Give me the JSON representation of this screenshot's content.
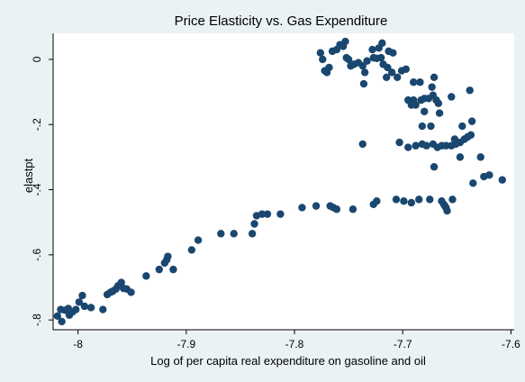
{
  "colors": {
    "background": "#eaf2f3",
    "plot_background": "#ffffff",
    "marker": "#1a476f",
    "axis": "#000000"
  },
  "chart_data": {
    "type": "scatter",
    "title": "Price Elasticity vs. Gas Expenditure",
    "xlabel": "Log of per capita real expenditure on gasoline and oil",
    "ylabel": "elastpt",
    "xlim": [
      -8.023,
      -7.597
    ],
    "ylim": [
      -0.83,
      0.08
    ],
    "grid": false,
    "x_ticks": [
      -8,
      -7.9,
      -7.8,
      -7.7,
      -7.6
    ],
    "x_tick_labels": [
      "-8",
      "-7.9",
      "-7.8",
      "-7.7",
      "-7.6"
    ],
    "y_ticks": [
      0,
      -0.2,
      -0.4,
      -0.6,
      -0.8
    ],
    "y_tick_labels": [
      "0",
      "-.2",
      "-.4",
      "-.6",
      "-.8"
    ],
    "series": [
      {
        "points": [
          [
            -8.019,
            -0.788
          ],
          [
            -8.016,
            -0.768
          ],
          [
            -8.015,
            -0.805
          ],
          [
            -8.012,
            -0.77
          ],
          [
            -8.009,
            -0.765
          ],
          [
            -8.008,
            -0.785
          ],
          [
            -8.005,
            -0.775
          ],
          [
            -8.002,
            -0.768
          ],
          [
            -7.999,
            -0.745
          ],
          [
            -7.996,
            -0.725
          ],
          [
            -7.994,
            -0.758
          ],
          [
            -7.988,
            -0.762
          ],
          [
            -7.977,
            -0.768
          ],
          [
            -7.973,
            -0.722
          ],
          [
            -7.97,
            -0.715
          ],
          [
            -7.968,
            -0.712
          ],
          [
            -7.965,
            -0.705
          ],
          [
            -7.963,
            -0.695
          ],
          [
            -7.96,
            -0.685
          ],
          [
            -7.958,
            -0.703
          ],
          [
            -7.955,
            -0.705
          ],
          [
            -7.951,
            -0.715
          ],
          [
            -7.937,
            -0.665
          ],
          [
            -7.925,
            -0.645
          ],
          [
            -7.92,
            -0.625
          ],
          [
            -7.918,
            -0.615
          ],
          [
            -7.917,
            -0.605
          ],
          [
            -7.912,
            -0.645
          ],
          [
            -7.895,
            -0.585
          ],
          [
            -7.889,
            -0.555
          ],
          [
            -7.868,
            -0.535
          ],
          [
            -7.856,
            -0.535
          ],
          [
            -7.839,
            -0.535
          ],
          [
            -7.837,
            -0.505
          ],
          [
            -7.835,
            -0.48
          ],
          [
            -7.83,
            -0.475
          ],
          [
            -7.825,
            -0.475
          ],
          [
            -7.813,
            -0.475
          ],
          [
            -7.793,
            -0.455
          ],
          [
            -7.78,
            -0.45
          ],
          [
            -7.767,
            -0.45
          ],
          [
            -7.764,
            -0.455
          ],
          [
            -7.761,
            -0.46
          ],
          [
            -7.746,
            -0.46
          ],
          [
            -7.727,
            -0.445
          ],
          [
            -7.724,
            -0.435
          ],
          [
            -7.706,
            -0.43
          ],
          [
            -7.699,
            -0.435
          ],
          [
            -7.692,
            -0.44
          ],
          [
            -7.685,
            -0.43
          ],
          [
            -7.675,
            -0.43
          ],
          [
            -7.664,
            -0.435
          ],
          [
            -7.662,
            -0.445
          ],
          [
            -7.661,
            -0.45
          ],
          [
            -7.66,
            -0.455
          ],
          [
            -7.659,
            -0.465
          ],
          [
            -7.654,
            -0.43
          ],
          [
            -7.737,
            -0.26
          ],
          [
            -7.703,
            -0.255
          ],
          [
            -7.695,
            -0.27
          ],
          [
            -7.688,
            -0.265
          ],
          [
            -7.682,
            -0.26
          ],
          [
            -7.678,
            -0.265
          ],
          [
            -7.672,
            -0.26
          ],
          [
            -7.668,
            -0.27
          ],
          [
            -7.664,
            -0.265
          ],
          [
            -7.66,
            -0.265
          ],
          [
            -7.655,
            -0.265
          ],
          [
            -7.651,
            -0.26
          ],
          [
            -7.647,
            -0.255
          ],
          [
            -7.643,
            -0.245
          ],
          [
            -7.64,
            -0.238
          ],
          [
            -7.637,
            -0.232
          ],
          [
            -7.671,
            -0.33
          ],
          [
            -7.647,
            -0.3
          ],
          [
            -7.628,
            -0.3
          ],
          [
            -7.635,
            -0.38
          ],
          [
            -7.625,
            -0.36
          ],
          [
            -7.62,
            -0.355
          ],
          [
            -7.608,
            -0.37
          ],
          [
            -7.652,
            -0.245
          ],
          [
            -7.645,
            -0.205
          ],
          [
            -7.636,
            -0.19
          ],
          [
            -7.638,
            -0.095
          ],
          [
            -7.655,
            -0.115
          ],
          [
            -7.666,
            -0.165
          ],
          [
            -7.674,
            -0.205
          ],
          [
            -7.682,
            -0.205
          ],
          [
            -7.69,
            -0.125
          ],
          [
            -7.688,
            -0.14
          ],
          [
            -7.683,
            -0.125
          ],
          [
            -7.68,
            -0.12
          ],
          [
            -7.676,
            -0.12
          ],
          [
            -7.672,
            -0.11
          ],
          [
            -7.669,
            -0.125
          ],
          [
            -7.667,
            -0.135
          ],
          [
            -7.673,
            -0.085
          ],
          [
            -7.671,
            -0.055
          ],
          [
            -7.684,
            -0.07
          ],
          [
            -7.69,
            -0.07
          ],
          [
            -7.697,
            -0.03
          ],
          [
            -7.701,
            -0.035
          ],
          [
            -7.705,
            -0.055
          ],
          [
            -7.71,
            -0.04
          ],
          [
            -7.714,
            -0.025
          ],
          [
            -7.718,
            -0.015
          ],
          [
            -7.72,
            0.005
          ],
          [
            -7.724,
            0.003
          ],
          [
            -7.727,
            0.005
          ],
          [
            -7.722,
            0.035
          ],
          [
            -7.719,
            0.05
          ],
          [
            -7.713,
            0.025
          ],
          [
            -7.709,
            0.02
          ],
          [
            -7.728,
            0.03
          ],
          [
            -7.733,
            -0.005
          ],
          [
            -7.737,
            -0.02
          ],
          [
            -7.741,
            -0.01
          ],
          [
            -7.745,
            -0.015
          ],
          [
            -7.748,
            -0.02
          ],
          [
            -7.75,
            0.0
          ],
          [
            -7.752,
            0.005
          ],
          [
            -7.755,
            0.04
          ],
          [
            -7.758,
            0.045
          ],
          [
            -7.761,
            0.03
          ],
          [
            -7.765,
            0.025
          ],
          [
            -7.768,
            -0.025
          ],
          [
            -7.77,
            -0.04
          ],
          [
            -7.772,
            -0.035
          ],
          [
            -7.774,
            0.0
          ],
          [
            -7.776,
            0.02
          ],
          [
            -7.753,
            0.055
          ],
          [
            -7.736,
            -0.075
          ],
          [
            -7.735,
            -0.04
          ],
          [
            -7.715,
            -0.055
          ],
          [
            -7.695,
            -0.125
          ],
          [
            -7.692,
            -0.14
          ],
          [
            -7.68,
            -0.16
          ]
        ]
      }
    ]
  }
}
